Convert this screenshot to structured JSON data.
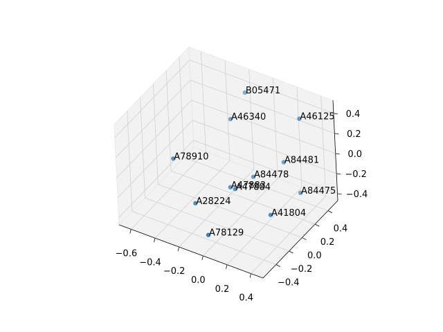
{
  "chart_data": {
    "type": "scatter3d",
    "labels": [
      "B05471",
      "A46340",
      "A46125",
      "A78910",
      "A84481",
      "A84478",
      "A84475",
      "A47883",
      "A47884",
      "A28224",
      "A41804",
      "A78129"
    ],
    "x": [
      -0.18,
      -0.18,
      0.34,
      -0.41,
      0.19,
      -0.01,
      0.25,
      -0.07,
      -0.03,
      -0.24,
      0.26,
      -0.01
    ],
    "y": [
      0.44,
      0.21,
      0.32,
      -0.26,
      0.32,
      0.21,
      0.44,
      -0.03,
      -0.03,
      -0.26,
      -0.03,
      -0.49
    ],
    "z": [
      0.38,
      0.27,
      0.43,
      0.09,
      -0.07,
      -0.23,
      -0.43,
      -0.2,
      -0.2,
      -0.28,
      -0.33,
      -0.34
    ],
    "color": "#1f77b4",
    "xlim": [
      -0.7,
      0.5
    ],
    "ylim": [
      -0.6,
      0.55
    ],
    "zlim": [
      -0.47,
      0.53
    ],
    "xticks": [
      {
        "value": -0.6,
        "label": "−0.6"
      },
      {
        "value": -0.4,
        "label": "−0.4"
      },
      {
        "value": -0.2,
        "label": "−0.2"
      },
      {
        "value": 0,
        "label": "0.0"
      },
      0.2,
      0.4
    ],
    "yticks": [
      {
        "value": -0.4,
        "label": "−0.4"
      },
      {
        "value": -0.2,
        "label": "−0.2"
      },
      {
        "value": 0,
        "label": "0.0"
      },
      0.2,
      0.4
    ],
    "zticks": [
      {
        "value": -0.4,
        "label": "−0.4"
      },
      {
        "value": -0.2,
        "label": "−0.2"
      },
      {
        "value": 0,
        "label": "0.0"
      },
      0.2,
      0.4
    ],
    "grid": true
  }
}
